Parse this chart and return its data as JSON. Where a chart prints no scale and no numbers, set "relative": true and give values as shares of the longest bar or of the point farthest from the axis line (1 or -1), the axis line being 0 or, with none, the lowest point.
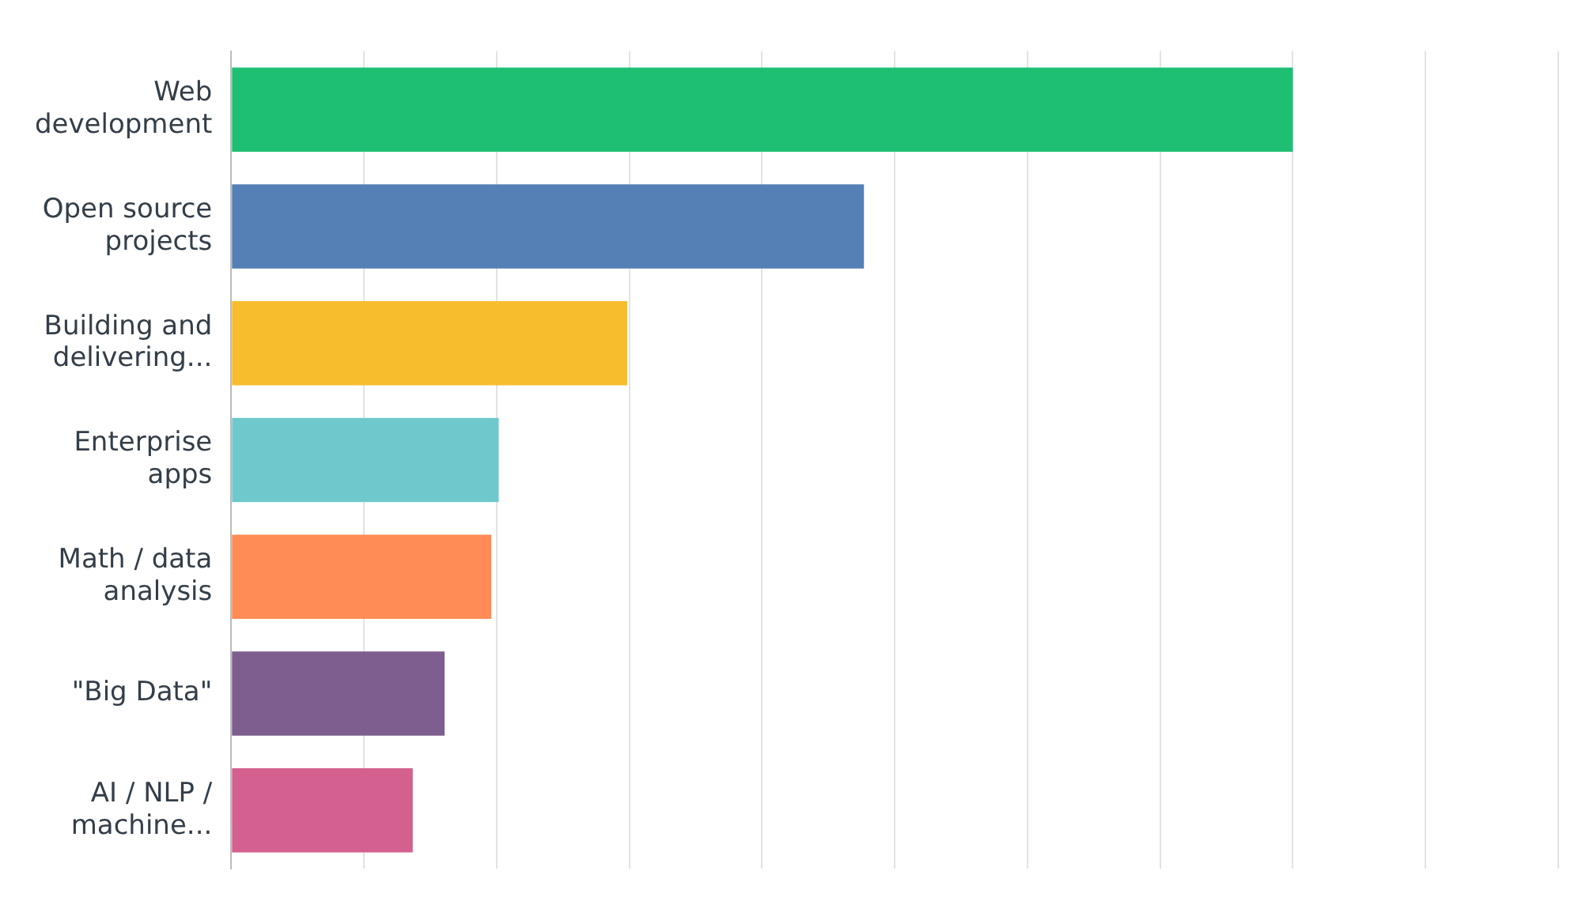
{
  "chart_data": {
    "type": "bar",
    "orientation": "horizontal",
    "relative": true,
    "grid": "x",
    "categories": [
      "Web development",
      "Open source projects",
      "Building and delivering...",
      "Enterprise apps",
      "Math / data analysis",
      "\"Big Data\"",
      "AI / NLP / machine..."
    ],
    "values": [
      1,
      0.596,
      0.373,
      0.252,
      0.245,
      0.201,
      0.171
    ],
    "colors": [
      "#1fbf73",
      "#5480b5",
      "#f7bd2c",
      "#6fc9cc",
      "#ff8b56",
      "#7e5e8e",
      "#d3608f"
    ]
  }
}
